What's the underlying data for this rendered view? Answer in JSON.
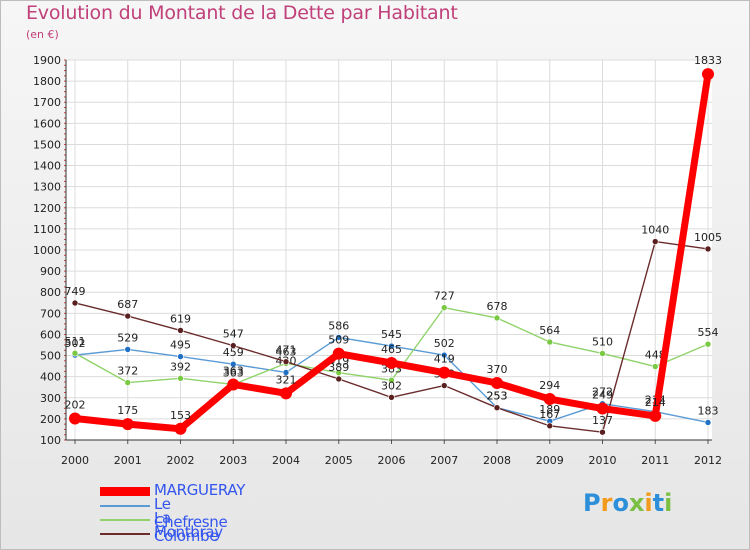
{
  "header": {
    "title": "Evolution du Montant de la Dette par Habitant",
    "subtitle": "(en €)"
  },
  "logo": {
    "text": "Proxiti",
    "colors": [
      "#2d8fd9",
      "#f29a1b",
      "#2d8fd9",
      "#7bc043",
      "#f29a1b",
      "#2d8fd9",
      "#7bc043"
    ]
  },
  "chart_data": {
    "type": "line",
    "x": [
      "2000",
      "2001",
      "2002",
      "2003",
      "2004",
      "2005",
      "2006",
      "2007",
      "2008",
      "2009",
      "2010",
      "2011",
      "2012"
    ],
    "ylim": [
      100,
      1900
    ],
    "yticks": [
      100,
      200,
      300,
      400,
      500,
      600,
      700,
      800,
      900,
      1000,
      1100,
      1200,
      1300,
      1400,
      1500,
      1600,
      1700,
      1800,
      1900
    ],
    "grid": true,
    "legend_position": "bottom-left",
    "series": [
      {
        "name": "Le Chefresne",
        "color": "#5b9bd5",
        "marker": "#1f6fc5",
        "values": [
          502,
          529,
          495,
          459,
          420,
          586,
          545,
          502,
          253,
          189,
          272,
          234,
          183
        ],
        "labels": [
          "502",
          "529",
          "495",
          "459",
          "420",
          "586",
          "545",
          "502",
          "253",
          "189",
          "272",
          "234",
          "183"
        ]
      },
      {
        "name": "La Colombe",
        "color": "#8fd36a",
        "marker": "#7ac943",
        "values": [
          511,
          372,
          392,
          363,
          463,
          419,
          383,
          727,
          678,
          564,
          510,
          448,
          554
        ],
        "labels": [
          "511",
          "372",
          "392",
          "363",
          "463",
          "419",
          "383",
          "727",
          "678",
          "564",
          "510",
          "448",
          "554"
        ]
      },
      {
        "name": "Montbray",
        "color": "#6b2c2c",
        "marker": "#5a1f1f",
        "values": [
          749,
          687,
          619,
          547,
          471,
          389,
          302,
          358,
          253,
          167,
          137,
          1040,
          1005
        ],
        "labels": [
          "749",
          "687",
          "619",
          "547",
          "471",
          "389",
          "302",
          "358",
          "253",
          "167",
          "137",
          "1040",
          "1005"
        ]
      },
      {
        "name": "MARGUERAY",
        "color": "#ff0000",
        "marker": "#ff0000",
        "bold": true,
        "values": [
          202,
          175,
          153,
          363,
          321,
          509,
          465,
          419,
          370,
          294,
          249,
          214,
          1833
        ],
        "labels": [
          "202",
          "175",
          "153",
          "363",
          "321",
          "509",
          "465",
          "419",
          "370",
          "294",
          "249",
          "214",
          "1833"
        ]
      }
    ]
  },
  "legend": {
    "items": [
      {
        "name": "MARGUERAY",
        "color": "#ff0000",
        "text_color": "#3355ee",
        "thick": true
      },
      {
        "name": "Le Chefresne",
        "color": "#5b9bd5",
        "text_color": "#3355ee"
      },
      {
        "name": "La Colombe",
        "color": "#8fd36a",
        "text_color": "#3355ee"
      },
      {
        "name": "Montbray",
        "color": "#6b2c2c",
        "text_color": "#3355ee"
      }
    ]
  }
}
